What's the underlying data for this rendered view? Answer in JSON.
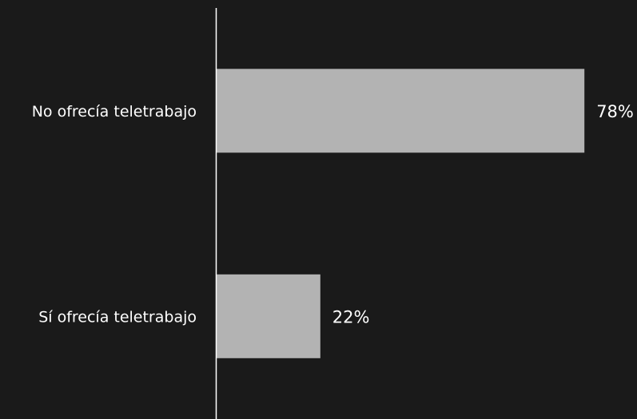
{
  "chart_data": {
    "type": "bar",
    "orientation": "horizontal",
    "categories": [
      "No ofrecía teletrabajo",
      "Sí ofrecía teletrabajo"
    ],
    "values": [
      78,
      22
    ],
    "value_labels": [
      "78%",
      "22%"
    ],
    "unit": "%",
    "xlim": [
      0,
      100
    ],
    "grid": false,
    "legend": "none"
  },
  "colors": {
    "background": "#1a1a1a",
    "bar": "#b3b3b3",
    "axis": "#ffffff",
    "text": "#ffffff"
  }
}
